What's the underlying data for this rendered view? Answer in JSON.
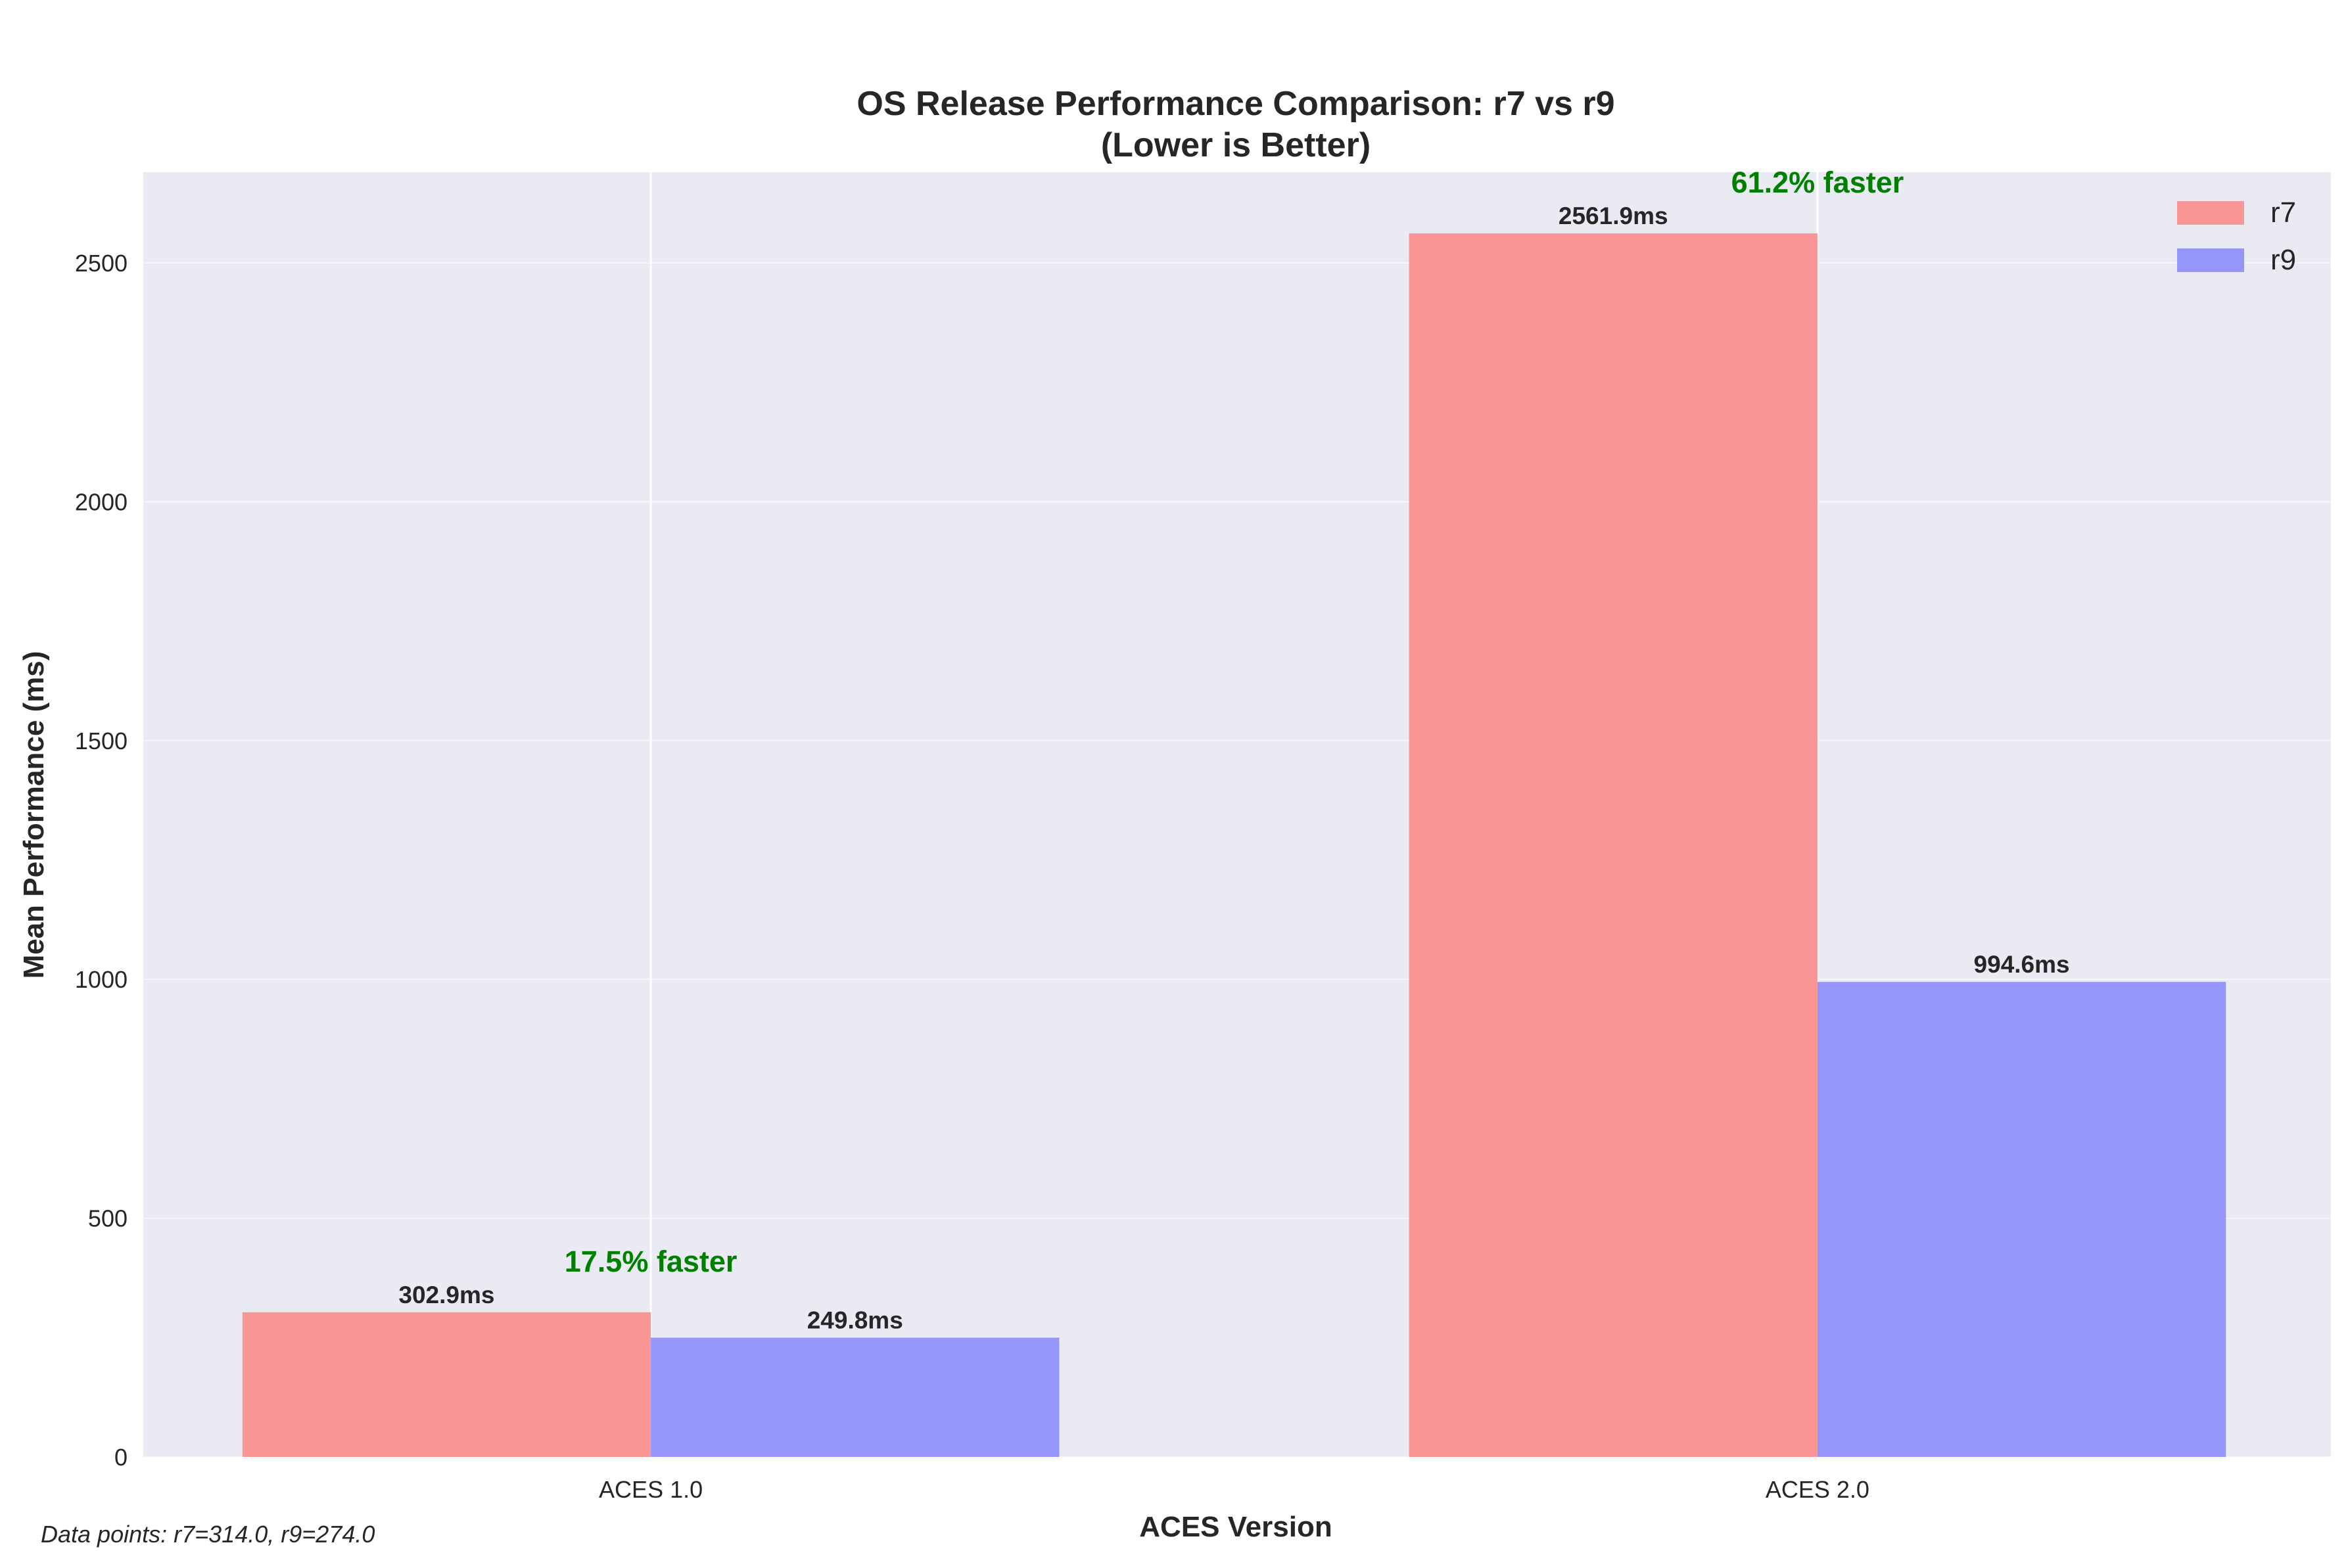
{
  "chart_data": {
    "type": "bar",
    "title": "OS Release Performance Comparison: r7 vs r9",
    "subtitle": "(Lower is Better)",
    "xlabel": "ACES Version",
    "ylabel": "Mean Performance (ms)",
    "categories": [
      "ACES 1.0",
      "ACES 2.0"
    ],
    "series": [
      {
        "name": "r7",
        "values": [
          302.9,
          2561.9
        ],
        "labels": [
          "302.9ms",
          "2561.9ms"
        ],
        "color": "#fa9696"
      },
      {
        "name": "r9",
        "values": [
          249.8,
          994.6
        ],
        "labels": [
          "249.8ms",
          "994.6ms"
        ],
        "color": "#9696fa"
      }
    ],
    "improvements": [
      "17.5% faster",
      "61.2% faster"
    ],
    "improvement_color": "#008000",
    "ylim": [
      0,
      2690
    ],
    "yticks": [
      0,
      500,
      1000,
      1500,
      2000,
      2500
    ],
    "ytick_labels": [
      "0",
      "500",
      "1000",
      "1500",
      "2000",
      "2500"
    ],
    "grid": true,
    "legend_position": "upper right",
    "footnote": "Data points: r7=314.0, r9=274.0",
    "background_color": "#eaeaf2"
  }
}
